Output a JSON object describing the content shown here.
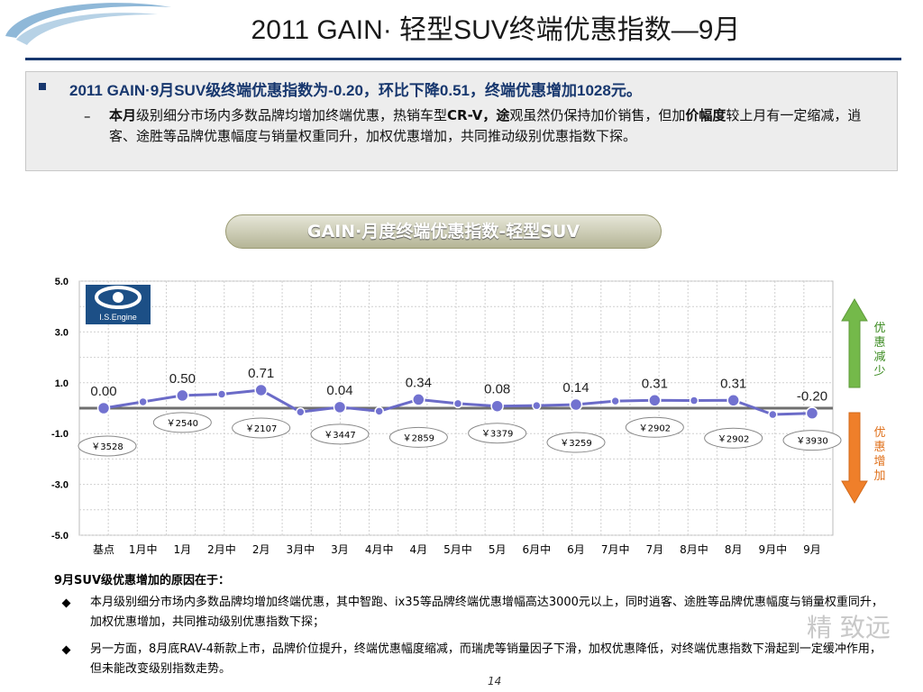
{
  "title": "2011 GAIN· 轻型SUV终端优惠指数—9月",
  "summary": {
    "headline": "2011 GAIN·9月SUV级终端优惠指数为-0.20，环比下降0.51，终端优惠增加1028元。",
    "detail_b1": "本月",
    "detail_t1": "级别细分市场内多数品牌均增加终端优惠，热销车型",
    "detail_b2": "CR-V，途",
    "detail_t2": "观虽然仍保持加价销售，但加",
    "detail_b3": "价幅度",
    "detail_t3": "较上月有一定缩减，逍客、途胜等品牌优惠幅度与销量权重同升，加权优惠增加，共同推动级别优惠指数下探。"
  },
  "chart_title": "GAIN·月度终端优惠指数-轻型SUV",
  "logo_text": "I.S.Engine",
  "side_labels": {
    "top": "优惠减少",
    "bottom": "优惠增加"
  },
  "colors": {
    "line": "#6b6bc8",
    "marker": "#7272d0",
    "arrow_up": "#74b94a",
    "arrow_down": "#ef7f2a",
    "label_top": "#3a8a1f",
    "label_bottom": "#e0701a"
  },
  "chart_data": {
    "type": "line",
    "categories": [
      "基点",
      "1月中",
      "1月",
      "2月中",
      "2月",
      "3月中",
      "3月",
      "4月中",
      "4月",
      "5月中",
      "5月",
      "6月中",
      "6月",
      "7月中",
      "7月",
      "8月中",
      "8月",
      "9月中",
      "9月"
    ],
    "ylim": [
      -5.0,
      5.0
    ],
    "yticks": [
      "5.0",
      "3.0",
      "1.0",
      "-1.0",
      "-3.0",
      "-5.0"
    ],
    "series": [
      {
        "values": [
          0.0,
          0.25,
          0.5,
          0.55,
          0.71,
          -0.15,
          0.04,
          -0.12,
          0.34,
          0.18,
          0.08,
          0.1,
          0.14,
          0.28,
          0.31,
          0.3,
          0.31,
          -0.25,
          -0.2
        ]
      }
    ],
    "data_labels": [
      {
        "index": 0,
        "text": "0.00"
      },
      {
        "index": 2,
        "text": "0.50"
      },
      {
        "index": 4,
        "text": "0.71"
      },
      {
        "index": 6,
        "text": "0.04"
      },
      {
        "index": 8,
        "text": "0.34"
      },
      {
        "index": 10,
        "text": "0.08"
      },
      {
        "index": 12,
        "text": "0.14"
      },
      {
        "index": 14,
        "text": "0.31"
      },
      {
        "index": 16,
        "text": "0.31"
      },
      {
        "index": 18,
        "text": "-0.20"
      }
    ],
    "price_labels": [
      {
        "index": 0,
        "text": "￥3528"
      },
      {
        "index": 2,
        "text": "￥2540"
      },
      {
        "index": 4,
        "text": "￥2107"
      },
      {
        "index": 6,
        "text": "￥3447"
      },
      {
        "index": 8,
        "text": "￥2859"
      },
      {
        "index": 10,
        "text": "￥3379"
      },
      {
        "index": 12,
        "text": "￥3259"
      },
      {
        "index": 14,
        "text": "￥2902"
      },
      {
        "index": 16,
        "text": "￥2902"
      },
      {
        "index": 18,
        "text": "￥3930"
      }
    ]
  },
  "reasons": {
    "heading": "9月SUV级优惠增加的原因在于：",
    "items": [
      "本月级别细分市场内多数品牌均增加终端优惠，其中智跑、ix35等品牌终端优惠增幅高达3000元以上，同时逍客、途胜等品牌优惠幅度与销量权重同升，加权优惠增加，共同推动级别优惠指数下探；",
      "另一方面，8月底RAV-4新款上市，品牌价位提升，终端优惠幅度缩减，而瑞虎等销量因子下滑，加权优惠降低，对终端优惠指数下滑起到一定缓冲作用，但未能改变级别指数走势。"
    ]
  },
  "page_number": "14",
  "watermark": "精 致远"
}
